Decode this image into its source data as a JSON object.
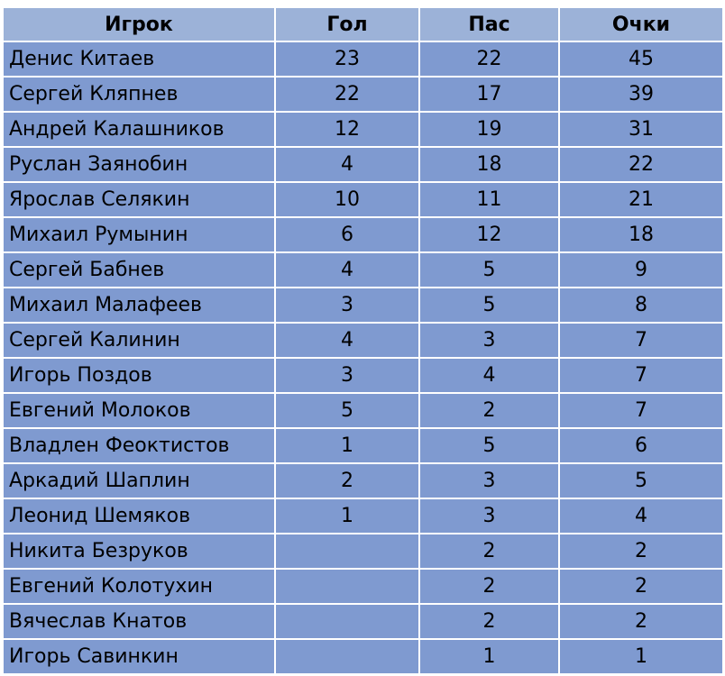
{
  "table": {
    "headers": {
      "player": "Игрок",
      "goals": "Гол",
      "assists": "Пас",
      "points": "Очки"
    },
    "rows": [
      {
        "name": "Денис Китаев",
        "goals": "23",
        "assists": "22",
        "points": "45"
      },
      {
        "name": "Сергей Кляпнев",
        "goals": "22",
        "assists": "17",
        "points": "39"
      },
      {
        "name": "Андрей Калашников",
        "goals": "12",
        "assists": "19",
        "points": "31"
      },
      {
        "name": "Руслан Заянобин",
        "goals": "4",
        "assists": "18",
        "points": "22"
      },
      {
        "name": "Ярослав Селякин",
        "goals": "10",
        "assists": "11",
        "points": "21"
      },
      {
        "name": "Михаил Румынин",
        "goals": "6",
        "assists": "12",
        "points": "18"
      },
      {
        "name": "Сергей Бабнев",
        "goals": "4",
        "assists": "5",
        "points": "9"
      },
      {
        "name": "Михаил Малафеев",
        "goals": "3",
        "assists": "5",
        "points": "8"
      },
      {
        "name": "Сергей Калинин",
        "goals": "4",
        "assists": "3",
        "points": "7"
      },
      {
        "name": "Игорь Поздов",
        "goals": "3",
        "assists": "4",
        "points": "7"
      },
      {
        "name": "Евгений Молоков",
        "goals": "5",
        "assists": "2",
        "points": "7"
      },
      {
        "name": "Владлен Феоктистов",
        "goals": "1",
        "assists": "5",
        "points": "6"
      },
      {
        "name": "Аркадий Шаплин",
        "goals": "2",
        "assists": "3",
        "points": "5"
      },
      {
        "name": "Леонид Шемяков",
        "goals": "1",
        "assists": "3",
        "points": "4"
      },
      {
        "name": "Никита Безруков",
        "goals": "",
        "assists": "2",
        "points": "2"
      },
      {
        "name": "Евгений Колотухин",
        "goals": "",
        "assists": "2",
        "points": "2"
      },
      {
        "name": "Вячеслав Кнатов",
        "goals": "",
        "assists": "2",
        "points": "2"
      },
      {
        "name": "Игорь Савинкин",
        "goals": "",
        "assists": "1",
        "points": "1"
      }
    ]
  }
}
